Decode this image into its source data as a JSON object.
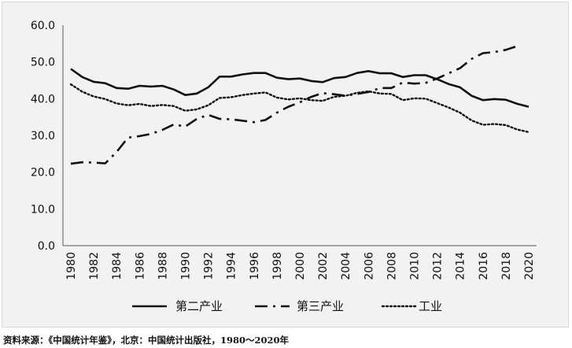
{
  "source_note": "资料来源：《中国统计年鉴》，北京：中国统计出版社，1980～2020年",
  "chart_data": {
    "type": "line",
    "title": "",
    "xlabel": "",
    "ylabel": "",
    "ylim": [
      0,
      60
    ],
    "y_ticks": [
      "0.0",
      "10.0",
      "20.0",
      "30.0",
      "40.0",
      "50.0",
      "60.0"
    ],
    "x": [
      1980,
      1981,
      1982,
      1983,
      1984,
      1985,
      1986,
      1987,
      1988,
      1989,
      1990,
      1991,
      1992,
      1993,
      1994,
      1995,
      1996,
      1997,
      1998,
      1999,
      2000,
      2001,
      2002,
      2003,
      2004,
      2005,
      2006,
      2007,
      2008,
      2009,
      2010,
      2011,
      2012,
      2013,
      2014,
      2015,
      2016,
      2017,
      2018,
      2019,
      2020
    ],
    "x_tick_labels": [
      "1980",
      "1982",
      "1984",
      "1986",
      "1988",
      "1990",
      "1992",
      "1994",
      "1996",
      "1998",
      "2000",
      "2002",
      "2004",
      "2006",
      "2008",
      "2010",
      "2012",
      "2014",
      "2016",
      "2018",
      "2020"
    ],
    "grid": false,
    "legend_position": "bottom",
    "series": [
      {
        "name": "第二产业",
        "style": "solid",
        "color": "#111111",
        "values": [
          48.1,
          45.9,
          44.6,
          44.2,
          42.9,
          42.7,
          43.5,
          43.3,
          43.5,
          42.5,
          41.0,
          41.4,
          43.1,
          46.0,
          46.0,
          46.6,
          47.0,
          47.0,
          45.7,
          45.3,
          45.5,
          44.8,
          44.5,
          45.6,
          45.9,
          47.0,
          47.5,
          46.9,
          46.9,
          45.9,
          46.4,
          46.4,
          45.3,
          44.0,
          43.1,
          40.8,
          39.6,
          39.9,
          39.7,
          38.6,
          37.8
        ]
      },
      {
        "name": "第三产业",
        "style": "dashdot",
        "color": "#111111",
        "values": [
          22.3,
          22.7,
          22.6,
          22.4,
          25.5,
          29.4,
          29.8,
          30.4,
          31.5,
          33.0,
          32.4,
          34.5,
          35.6,
          34.5,
          34.4,
          34.0,
          33.6,
          34.2,
          36.2,
          37.8,
          39.0,
          40.5,
          41.5,
          41.2,
          40.8,
          41.3,
          41.8,
          42.9,
          42.9,
          44.4,
          44.1,
          44.3,
          45.5,
          46.9,
          48.3,
          50.8,
          52.4,
          52.7,
          53.3,
          54.3,
          null
        ]
      },
      {
        "name": "工业",
        "style": "dotted",
        "color": "#111111",
        "values": [
          43.9,
          41.9,
          40.6,
          39.9,
          38.7,
          38.2,
          38.6,
          38.0,
          38.3,
          38.0,
          36.7,
          37.1,
          38.2,
          40.2,
          40.4,
          41.0,
          41.4,
          41.7,
          40.3,
          39.8,
          40.1,
          39.6,
          39.4,
          40.5,
          40.8,
          41.6,
          42.0,
          41.4,
          41.3,
          39.6,
          40.1,
          40.0,
          38.8,
          37.6,
          36.2,
          34.1,
          32.9,
          33.1,
          32.8,
          31.6,
          30.9
        ]
      }
    ]
  }
}
